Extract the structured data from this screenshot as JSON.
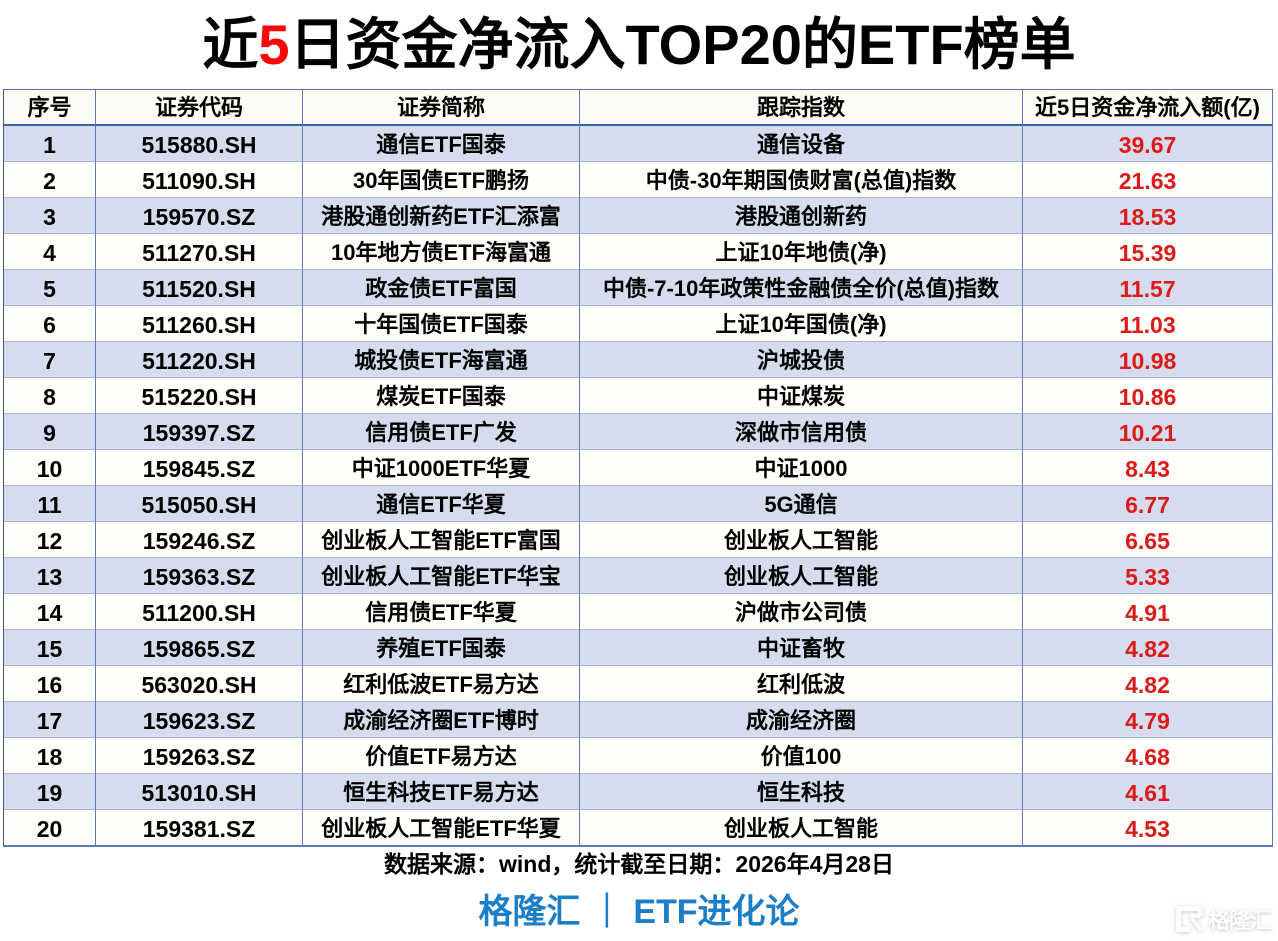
{
  "title": {
    "prefix": "近",
    "highlight": "5",
    "suffix": "日资金净流入TOP20的ETF榜单",
    "highlight_color": "#fb0505"
  },
  "table": {
    "columns": [
      "序号",
      "证券代码",
      "证券简称",
      "跟踪指数",
      "近5日资金净流入额(亿)"
    ],
    "value_color": "#dc1a1a",
    "band_color": "#d6dcee",
    "rows": [
      {
        "rank": "1",
        "code": "515880.SH",
        "name": "通信ETF国泰",
        "index": "通信设备",
        "inflow": "39.67"
      },
      {
        "rank": "2",
        "code": "511090.SH",
        "name": "30年国债ETF鹏扬",
        "index": "中债-30年期国债财富(总值)指数",
        "inflow": "21.63"
      },
      {
        "rank": "3",
        "code": "159570.SZ",
        "name": "港股通创新药ETF汇添富",
        "index": "港股通创新药",
        "inflow": "18.53"
      },
      {
        "rank": "4",
        "code": "511270.SH",
        "name": "10年地方债ETF海富通",
        "index": "上证10年地债(净)",
        "inflow": "15.39"
      },
      {
        "rank": "5",
        "code": "511520.SH",
        "name": "政金债ETF富国",
        "index": "中债-7-10年政策性金融债全价(总值)指数",
        "inflow": "11.57"
      },
      {
        "rank": "6",
        "code": "511260.SH",
        "name": "十年国债ETF国泰",
        "index": "上证10年国债(净)",
        "inflow": "11.03"
      },
      {
        "rank": "7",
        "code": "511220.SH",
        "name": "城投债ETF海富通",
        "index": "沪城投债",
        "inflow": "10.98"
      },
      {
        "rank": "8",
        "code": "515220.SH",
        "name": "煤炭ETF国泰",
        "index": "中证煤炭",
        "inflow": "10.86"
      },
      {
        "rank": "9",
        "code": "159397.SZ",
        "name": "信用债ETF广发",
        "index": "深做市信用债",
        "inflow": "10.21"
      },
      {
        "rank": "10",
        "code": "159845.SZ",
        "name": "中证1000ETF华夏",
        "index": "中证1000",
        "inflow": "8.43"
      },
      {
        "rank": "11",
        "code": "515050.SH",
        "name": "通信ETF华夏",
        "index": "5G通信",
        "inflow": "6.77"
      },
      {
        "rank": "12",
        "code": "159246.SZ",
        "name": "创业板人工智能ETF富国",
        "index": "创业板人工智能",
        "inflow": "6.65"
      },
      {
        "rank": "13",
        "code": "159363.SZ",
        "name": "创业板人工智能ETF华宝",
        "index": "创业板人工智能",
        "inflow": "5.33"
      },
      {
        "rank": "14",
        "code": "511200.SH",
        "name": "信用债ETF华夏",
        "index": "沪做市公司债",
        "inflow": "4.91"
      },
      {
        "rank": "15",
        "code": "159865.SZ",
        "name": "养殖ETF国泰",
        "index": "中证畜牧",
        "inflow": "4.82"
      },
      {
        "rank": "16",
        "code": "563020.SH",
        "name": "红利低波ETF易方达",
        "index": "红利低波",
        "inflow": "4.82"
      },
      {
        "rank": "17",
        "code": "159623.SZ",
        "name": "成渝经济圈ETF博时",
        "index": "成渝经济圈",
        "inflow": "4.79"
      },
      {
        "rank": "18",
        "code": "159263.SZ",
        "name": "价值ETF易方达",
        "index": "价值100",
        "inflow": "4.68"
      },
      {
        "rank": "19",
        "code": "513010.SH",
        "name": "恒生科技ETF易方达",
        "index": "恒生科技",
        "inflow": "4.61"
      },
      {
        "rank": "20",
        "code": "159381.SZ",
        "name": "创业板人工智能ETF华夏",
        "index": "创业板人工智能",
        "inflow": "4.53"
      }
    ]
  },
  "footer": {
    "source": "数据来源：wind，统计截至日期：2026年4月28日",
    "brand": "格隆汇 ｜ ETF进化论",
    "brand_color": "#1b7ec6"
  },
  "watermark": {
    "logo": "G",
    "text": "格隆汇"
  },
  "chart_data": {
    "type": "table",
    "title": "近5日资金净流入TOP20的ETF榜单",
    "columns": [
      "序号",
      "证券代码",
      "证券简称",
      "跟踪指数",
      "近5日资金净流入额(亿)"
    ],
    "rows": [
      [
        "1",
        "515880.SH",
        "通信ETF国泰",
        "通信设备",
        39.67
      ],
      [
        "2",
        "511090.SH",
        "30年国债ETF鹏扬",
        "中债-30年期国债财富(总值)指数",
        21.63
      ],
      [
        "3",
        "159570.SZ",
        "港股通创新药ETF汇添富",
        "港股通创新药",
        18.53
      ],
      [
        "4",
        "511270.SH",
        "10年地方债ETF海富通",
        "上证10年地债(净)",
        15.39
      ],
      [
        "5",
        "511520.SH",
        "政金债ETF富国",
        "中债-7-10年政策性金融债全价(总值)指数",
        11.57
      ],
      [
        "6",
        "511260.SH",
        "十年国债ETF国泰",
        "上证10年国债(净)",
        11.03
      ],
      [
        "7",
        "511220.SH",
        "城投债ETF海富通",
        "沪城投债",
        10.98
      ],
      [
        "8",
        "515220.SH",
        "煤炭ETF国泰",
        "中证煤炭",
        10.86
      ],
      [
        "9",
        "159397.SZ",
        "信用债ETF广发",
        "深做市信用债",
        10.21
      ],
      [
        "10",
        "159845.SZ",
        "中证1000ETF华夏",
        "中证1000",
        8.43
      ],
      [
        "11",
        "515050.SH",
        "通信ETF华夏",
        "5G通信",
        6.77
      ],
      [
        "12",
        "159246.SZ",
        "创业板人工智能ETF富国",
        "创业板人工智能",
        6.65
      ],
      [
        "13",
        "159363.SZ",
        "创业板人工智能ETF华宝",
        "创业板人工智能",
        5.33
      ],
      [
        "14",
        "511200.SH",
        "信用债ETF华夏",
        "沪做市公司债",
        4.91
      ],
      [
        "15",
        "159865.SZ",
        "养殖ETF国泰",
        "中证畜牧",
        4.82
      ],
      [
        "16",
        "563020.SH",
        "红利低波ETF易方达",
        "红利低波",
        4.82
      ],
      [
        "17",
        "159623.SZ",
        "成渝经济圈ETF博时",
        "成渝经济圈",
        4.79
      ],
      [
        "18",
        "159263.SZ",
        "价值ETF易方达",
        "价值100",
        4.68
      ],
      [
        "19",
        "513010.SH",
        "恒生科技ETF易方达",
        "恒生科技",
        4.61
      ],
      [
        "20",
        "159381.SZ",
        "创业板人工智能ETF华夏",
        "创业板人工智能",
        4.53
      ]
    ],
    "source_note": "数据来源：wind，统计截至日期：2026年4月28日",
    "publisher": "格隆汇 ｜ ETF进化论"
  }
}
